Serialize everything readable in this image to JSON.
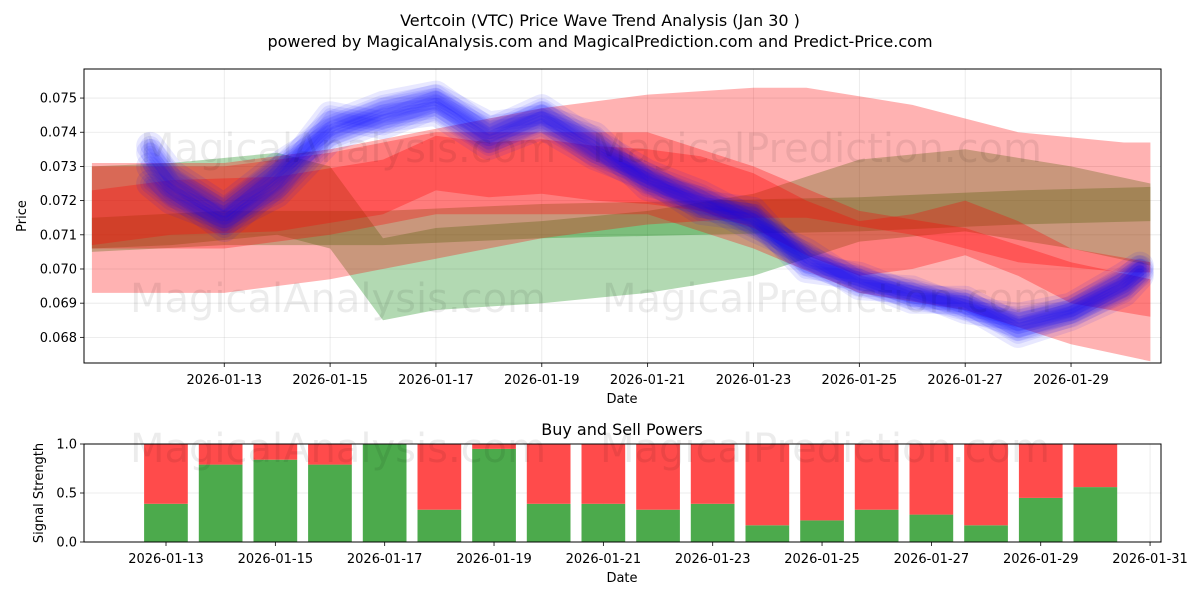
{
  "title": "Vertcoin (VTC) Price Wave Trend Analysis (Jan 30 )",
  "subtitle": "powered by MagicalAnalysis.com and MagicalPrediction.com and Predict-Price.com",
  "watermarks": [
    "MagicalAnalysis.com",
    "MagicalPrediction.com"
  ],
  "chart_data": [
    {
      "type": "area",
      "title": "",
      "xlabel": "Date",
      "ylabel": "Price",
      "x_start": "2026-01-11",
      "x_end": "2026-01-31",
      "xlim": [
        10.35,
        30.7
      ],
      "ylim": [
        0.06725,
        0.07585
      ],
      "xticks": [
        13,
        15,
        17,
        19,
        21,
        23,
        25,
        27,
        29
      ],
      "xtick_labels": [
        "2026-01-13",
        "2026-01-15",
        "2026-01-17",
        "2026-01-19",
        "2026-01-21",
        "2026-01-23",
        "2026-01-25",
        "2026-01-27",
        "2026-01-29"
      ],
      "yticks": [
        0.068,
        0.069,
        0.07,
        0.071,
        0.072,
        0.073,
        0.074,
        0.075
      ],
      "ytick_labels": [
        "0.068",
        "0.069",
        "0.070",
        "0.071",
        "0.072",
        "0.073",
        "0.074",
        "0.075"
      ],
      "grid": true,
      "colors": {
        "blue": "#0000ff",
        "red": "#ff0000",
        "green": "#008000"
      },
      "blue_series": [
        {
          "x": [
            11.6,
            12,
            13,
            14,
            15,
            16,
            17,
            18,
            19,
            20,
            21,
            22,
            23,
            24,
            25,
            26,
            27,
            28,
            29,
            30,
            30.3
          ],
          "y": [
            0.0734,
            0.0725,
            0.0716,
            0.0728,
            0.0742,
            0.0748,
            0.0751,
            0.074,
            0.0747,
            0.0737,
            0.0728,
            0.0722,
            0.0714,
            0.0703,
            0.0696,
            0.0693,
            0.0689,
            0.0684,
            0.0688,
            0.0696,
            0.07
          ]
        },
        {
          "x": [
            11.6,
            12,
            13,
            14,
            15,
            16,
            17,
            18,
            19,
            20,
            21,
            22,
            23,
            24,
            25,
            26,
            27,
            28,
            29,
            30,
            30.3
          ],
          "y": [
            0.073,
            0.0723,
            0.0712,
            0.0725,
            0.0745,
            0.0742,
            0.0748,
            0.0738,
            0.0745,
            0.0734,
            0.0726,
            0.0719,
            0.0717,
            0.07,
            0.0698,
            0.0692,
            0.069,
            0.0681,
            0.0686,
            0.0693,
            0.0698
          ]
        },
        {
          "x": [
            11.6,
            12,
            13,
            14,
            15,
            16,
            17,
            18,
            19,
            20,
            21,
            22,
            23,
            24,
            25,
            26,
            27,
            28,
            29,
            30,
            30.3
          ],
          "y": [
            0.0736,
            0.0728,
            0.0718,
            0.073,
            0.074,
            0.0746,
            0.075,
            0.0742,
            0.0744,
            0.0739,
            0.0724,
            0.072,
            0.0712,
            0.0705,
            0.0695,
            0.0694,
            0.0688,
            0.0686,
            0.0689,
            0.0698,
            0.0701
          ]
        },
        {
          "x": [
            11.6,
            12,
            13,
            14,
            15,
            16,
            17,
            18,
            19,
            20,
            21,
            22,
            23,
            24,
            25,
            26,
            27,
            28,
            29,
            30,
            30.3
          ],
          "y": [
            0.0725,
            0.072,
            0.0714,
            0.0722,
            0.0738,
            0.0744,
            0.0746,
            0.0736,
            0.0742,
            0.0733,
            0.0727,
            0.0717,
            0.0715,
            0.0702,
            0.0697,
            0.0691,
            0.0691,
            0.0683,
            0.0687,
            0.0695,
            0.0699
          ]
        }
      ],
      "red_series": [
        {
          "x": [
            10.5,
            13,
            15,
            17,
            19,
            21,
            23,
            24,
            26,
            28,
            30,
            30.5
          ],
          "y": [
            0.0712,
            0.0712,
            0.0716,
            0.0722,
            0.0728,
            0.0732,
            0.0734,
            0.0734,
            0.0729,
            0.0721,
            0.0718,
            0.0718
          ],
          "band": 0.0019
        },
        {
          "x": [
            10.5,
            13,
            15,
            17,
            19,
            21,
            23,
            25,
            27,
            29,
            30.5
          ],
          "y": [
            0.0718,
            0.0718,
            0.0722,
            0.0728,
            0.0728,
            0.0728,
            0.0718,
            0.0705,
            0.07,
            0.069,
            0.0685
          ],
          "band": 0.0012
        },
        {
          "x": [
            10.5,
            12,
            14,
            16,
            17,
            18,
            19,
            20,
            21,
            22,
            23,
            24,
            25,
            26,
            27,
            28,
            29,
            30.5
          ],
          "y": [
            0.0715,
            0.0718,
            0.0719,
            0.0724,
            0.0731,
            0.0729,
            0.073,
            0.0728,
            0.0727,
            0.0725,
            0.072,
            0.0712,
            0.0706,
            0.0708,
            0.0712,
            0.0706,
            0.0698,
            0.0694
          ],
          "band": 0.0008
        }
      ],
      "green_series": [
        {
          "x": [
            10.5,
            12,
            14,
            15,
            16,
            17,
            19,
            21,
            23,
            25,
            27,
            29,
            30.5
          ],
          "y": [
            0.0718,
            0.0719,
            0.0722,
            0.0718,
            0.0697,
            0.07,
            0.0702,
            0.0705,
            0.071,
            0.072,
            0.0723,
            0.0718,
            0.0713
          ],
          "band": 0.0012
        },
        {
          "x": [
            10.5,
            13,
            16,
            19,
            22,
            25,
            28,
            30.5
          ],
          "y": [
            0.071,
            0.0712,
            0.0712,
            0.0714,
            0.0715,
            0.0716,
            0.0718,
            0.0719
          ],
          "band": 0.0005
        }
      ]
    },
    {
      "type": "bar",
      "title": "Buy and Sell Powers",
      "xlabel": "Date",
      "ylabel": "Signal Strength",
      "xlim": [
        11.5,
        31.2
      ],
      "ylim": [
        0,
        1.0
      ],
      "xticks": [
        13,
        15,
        17,
        19,
        21,
        23,
        25,
        27,
        29,
        31
      ],
      "xtick_labels": [
        "2026-01-13",
        "2026-01-15",
        "2026-01-17",
        "2026-01-19",
        "2026-01-21",
        "2026-01-23",
        "2026-01-25",
        "2026-01-27",
        "2026-01-29",
        "2026-01-31"
      ],
      "yticks": [
        0.0,
        0.5,
        1.0
      ],
      "ytick_labels": [
        "0.0",
        "0.5",
        "1.0"
      ],
      "grid": true,
      "colors": {
        "buy": "#4caa4c",
        "sell": "#ff4b4b"
      },
      "categories": [
        "2026-01-13",
        "2026-01-14",
        "2026-01-15",
        "2026-01-16",
        "2026-01-17",
        "2026-01-18",
        "2026-01-19",
        "2026-01-20",
        "2026-01-21",
        "2026-01-22",
        "2026-01-23",
        "2026-01-24",
        "2026-01-25",
        "2026-01-26",
        "2026-01-27",
        "2026-01-28",
        "2026-01-29",
        "2026-01-30"
      ],
      "series": [
        {
          "name": "Buy",
          "values": [
            0.39,
            0.79,
            0.84,
            0.79,
            1.0,
            0.33,
            0.95,
            0.39,
            0.39,
            0.33,
            0.39,
            0.17,
            0.22,
            0.33,
            0.28,
            0.17,
            0.45,
            0.56
          ]
        },
        {
          "name": "Sell",
          "values": [
            0.61,
            0.21,
            0.16,
            0.21,
            0.0,
            0.67,
            0.05,
            0.61,
            0.61,
            0.67,
            0.61,
            0.83,
            0.78,
            0.67,
            0.72,
            0.83,
            0.55,
            0.44
          ]
        }
      ]
    }
  ]
}
